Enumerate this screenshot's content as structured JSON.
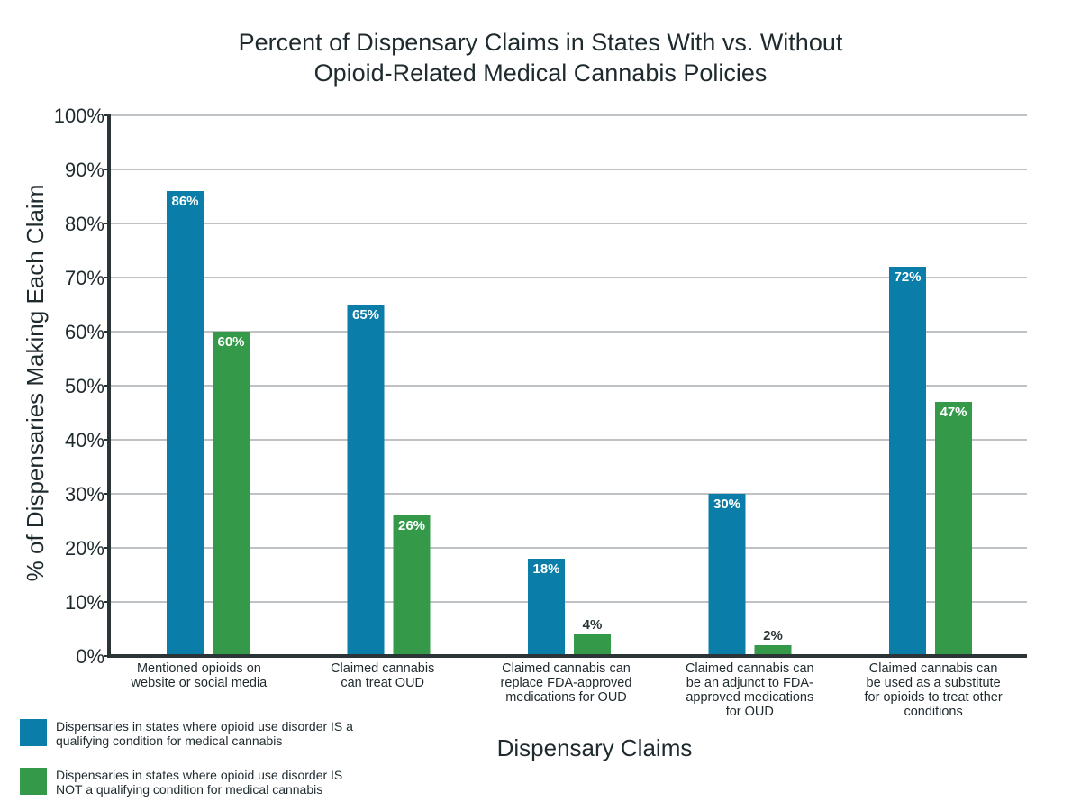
{
  "chart_data": {
    "type": "bar",
    "title": [
      "Percent of Dispensary Claims in States With vs. Without",
      "Opioid-Related Medical Cannabis Policies"
    ],
    "xlabel": "Dispensary Claims",
    "ylabel": "% of Dispensaries Making Each Claim",
    "ylim": [
      0,
      100
    ],
    "yticks": [
      "0%",
      "10%",
      "20%",
      "30%",
      "40%",
      "50%",
      "60%",
      "70%",
      "80%",
      "90%",
      "100%"
    ],
    "grid": true,
    "legend_position": "bottom-left",
    "categories": [
      [
        "Mentioned opioids on",
        "website or social media"
      ],
      [
        "Claimed cannabis",
        "can treat OUD"
      ],
      [
        "Claimed cannabis can",
        "replace FDA-approved",
        "medications for OUD"
      ],
      [
        "Claimed cannabis can",
        "be an adjunct to FDA-",
        "approved medications",
        "for OUD"
      ],
      [
        "Claimed cannabis can",
        "be used as a substitute",
        "for opioids to treat other",
        "conditions"
      ]
    ],
    "series": [
      {
        "name": "Dispensaries in states where opioid use disorder IS a qualifying condition for medical cannabis",
        "color": "#0a7ea8",
        "values": [
          86,
          65,
          18,
          30,
          72
        ],
        "labels": [
          "86%",
          "65%",
          "18%",
          "30%",
          "72%"
        ]
      },
      {
        "name": "Dispensaries in states where opioid use disorder IS NOT a qualifying condition for medical cannabis",
        "color": "#349a49",
        "values": [
          60,
          26,
          4,
          2,
          47
        ],
        "labels": [
          "60%",
          "26%",
          "4%",
          "2%",
          "47%"
        ]
      }
    ]
  },
  "legend": [
    {
      "lines": [
        "Dispensaries in states where opioid use disorder IS a",
        "qualifying condition for medical cannabis"
      ]
    },
    {
      "lines": [
        "Dispensaries in states where opioid use disorder IS",
        "NOT a qualifying condition for medical cannabis"
      ]
    }
  ]
}
